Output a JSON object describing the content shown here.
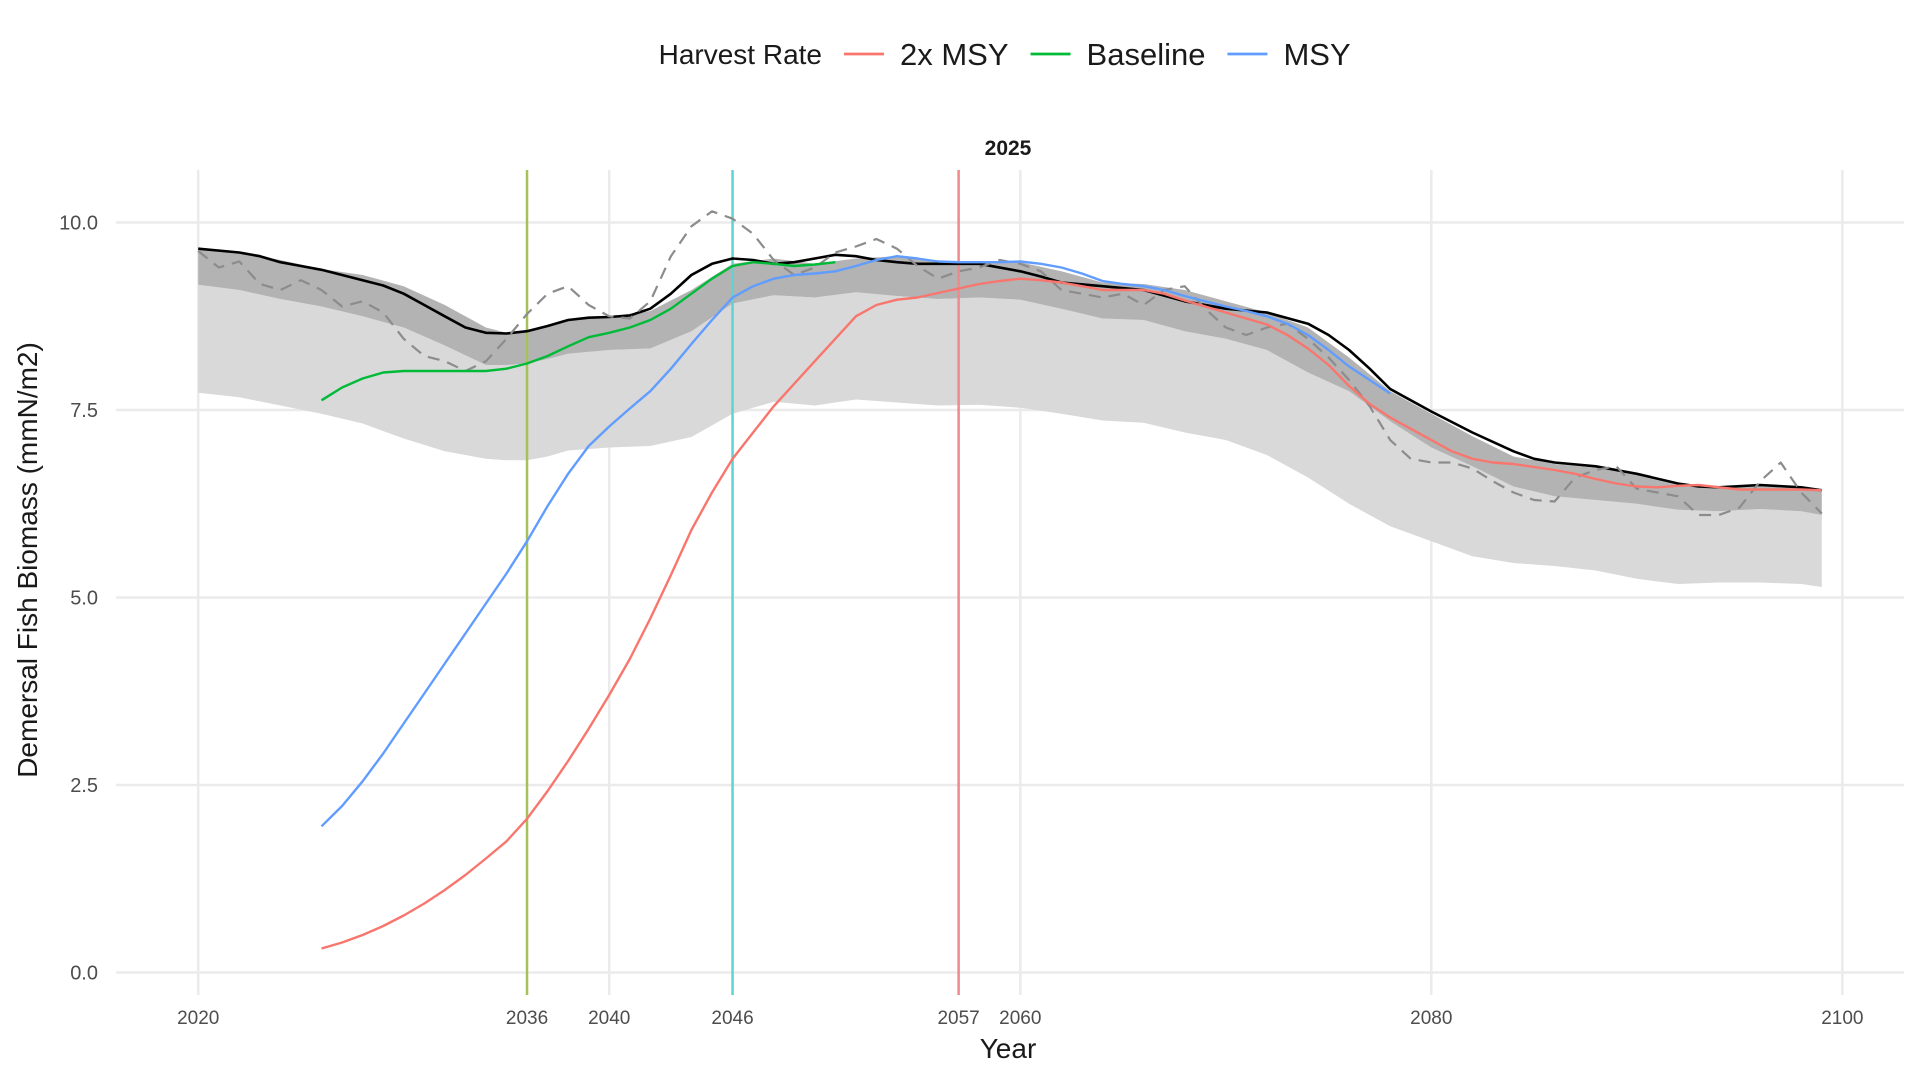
{
  "chart_data": {
    "type": "line",
    "facet_title": "2025",
    "xlabel": "Year",
    "ylabel": "Demersal Fish Biomass (mmN/m2)",
    "xlim": [
      2016,
      2103
    ],
    "ylim": [
      -0.3,
      10.7
    ],
    "x_ticks": [
      2020,
      2036,
      2040,
      2046,
      2057,
      2060,
      2080,
      2100
    ],
    "x_gridlines": [
      2020,
      2040,
      2060,
      2080,
      2100
    ],
    "y_ticks": [
      0,
      2.5,
      5,
      7.5,
      10
    ],
    "y_tick_labels": [
      "0.0",
      "2.5",
      "5.0",
      "7.5",
      "10.0"
    ],
    "grid": true,
    "legend": {
      "title": "Harvest Rate",
      "position": "top",
      "entries": [
        {
          "label": "2x MSY",
          "color": "#F8766D"
        },
        {
          "label": "Baseline",
          "color": "#00BA38"
        },
        {
          "label": "MSY",
          "color": "#619CFF"
        }
      ]
    },
    "vlines": [
      {
        "x": 2036,
        "color": "#A3C35A"
      },
      {
        "x": 2046,
        "color": "#5FD3D3"
      },
      {
        "x": 2057,
        "color": "#F08A8A"
      }
    ],
    "band_outer": {
      "color": "#d9d9d9",
      "x": [
        2020,
        2022,
        2024,
        2026,
        2028,
        2030,
        2032,
        2034,
        2035,
        2036,
        2037,
        2038,
        2040,
        2042,
        2044,
        2046,
        2048,
        2050,
        2052,
        2054,
        2056,
        2058,
        2060,
        2062,
        2064,
        2066,
        2068,
        2070,
        2072,
        2074,
        2076,
        2078,
        2080,
        2082,
        2084,
        2086,
        2088,
        2090,
        2092,
        2094,
        2096,
        2098,
        2099
      ],
      "upper": [
        9.17,
        9.1,
        8.98,
        8.88,
        8.75,
        8.6,
        8.36,
        8.1,
        8.1,
        8.12,
        8.18,
        8.25,
        8.3,
        8.32,
        8.55,
        8.92,
        9.03,
        9.0,
        9.07,
        9.02,
        8.98,
        9.0,
        8.97,
        8.85,
        8.72,
        8.7,
        8.55,
        8.45,
        8.3,
        8.0,
        7.75,
        7.35,
        7.0,
        6.75,
        6.48,
        6.35,
        6.3,
        6.25,
        6.17,
        6.15,
        6.18,
        6.15,
        6.1
      ],
      "lower": [
        7.73,
        7.67,
        7.56,
        7.45,
        7.32,
        7.12,
        6.95,
        6.85,
        6.83,
        6.83,
        6.88,
        6.96,
        7.0,
        7.02,
        7.14,
        7.45,
        7.61,
        7.56,
        7.64,
        7.6,
        7.56,
        7.57,
        7.53,
        7.45,
        7.36,
        7.33,
        7.2,
        7.1,
        6.9,
        6.6,
        6.25,
        5.95,
        5.75,
        5.55,
        5.46,
        5.42,
        5.36,
        5.25,
        5.18,
        5.2,
        5.2,
        5.18,
        5.14
      ]
    },
    "band_inner": {
      "color": "#b3b3b3",
      "x": [
        2020,
        2022,
        2024,
        2026,
        2028,
        2030,
        2032,
        2034,
        2035,
        2036,
        2037,
        2038,
        2040,
        2042,
        2044,
        2046,
        2048,
        2050,
        2052,
        2054,
        2056,
        2058,
        2060,
        2062,
        2064,
        2066,
        2068,
        2070,
        2072,
        2074,
        2076,
        2078,
        2080,
        2082,
        2084,
        2086,
        2088,
        2090,
        2092,
        2094,
        2096,
        2098,
        2099
      ],
      "upper": [
        9.65,
        9.6,
        9.5,
        9.38,
        9.3,
        9.15,
        8.9,
        8.6,
        8.53,
        8.55,
        8.62,
        8.7,
        8.75,
        8.82,
        9.1,
        9.45,
        9.52,
        9.45,
        9.52,
        9.55,
        9.48,
        9.45,
        9.47,
        9.35,
        9.2,
        9.18,
        9.1,
        8.95,
        8.8,
        8.6,
        8.2,
        7.75,
        7.45,
        7.15,
        6.88,
        6.78,
        6.73,
        6.63,
        6.5,
        6.47,
        6.5,
        6.45,
        6.43
      ],
      "lower": [
        9.17,
        9.1,
        8.98,
        8.88,
        8.75,
        8.6,
        8.36,
        8.1,
        8.1,
        8.12,
        8.18,
        8.25,
        8.3,
        8.32,
        8.55,
        8.92,
        9.03,
        9.0,
        9.07,
        9.02,
        8.98,
        9.0,
        8.97,
        8.85,
        8.72,
        8.7,
        8.55,
        8.45,
        8.3,
        8.0,
        7.75,
        7.35,
        7.0,
        6.75,
        6.48,
        6.35,
        6.3,
        6.25,
        6.17,
        6.15,
        6.18,
        6.15,
        6.1
      ]
    },
    "reference_lines": [
      {
        "style": "solid",
        "color": "#000000",
        "x": [
          2020,
          2022,
          2023,
          2024,
          2025,
          2026,
          2027,
          2028,
          2029,
          2030,
          2031,
          2032,
          2033,
          2034,
          2035,
          2036,
          2037,
          2038,
          2039,
          2040,
          2041,
          2042,
          2043,
          2044,
          2045,
          2046,
          2047,
          2048,
          2049,
          2050,
          2051,
          2052,
          2053,
          2054,
          2055,
          2056,
          2058,
          2060,
          2061,
          2062,
          2064,
          2066,
          2068,
          2070,
          2072,
          2074,
          2075,
          2076,
          2077,
          2078,
          2080,
          2082,
          2084,
          2085,
          2086,
          2088,
          2090,
          2092,
          2093,
          2094,
          2096,
          2098,
          2099
        ],
        "y": [
          9.65,
          9.6,
          9.55,
          9.47,
          9.42,
          9.37,
          9.3,
          9.23,
          9.16,
          9.05,
          8.9,
          8.75,
          8.6,
          8.53,
          8.52,
          8.55,
          8.62,
          8.7,
          8.73,
          8.74,
          8.76,
          8.85,
          9.05,
          9.3,
          9.45,
          9.52,
          9.5,
          9.45,
          9.47,
          9.52,
          9.57,
          9.55,
          9.5,
          9.47,
          9.45,
          9.45,
          9.45,
          9.35,
          9.28,
          9.2,
          9.15,
          9.1,
          8.95,
          8.85,
          8.8,
          8.65,
          8.5,
          8.3,
          8.05,
          7.78,
          7.48,
          7.2,
          6.95,
          6.85,
          6.8,
          6.75,
          6.65,
          6.52,
          6.48,
          6.47,
          6.5,
          6.47,
          6.43
        ]
      },
      {
        "style": "dashed",
        "color": "#8c8c8c",
        "x": [
          2020,
          2021,
          2022,
          2023,
          2024,
          2025,
          2026,
          2027,
          2028,
          2029,
          2030,
          2031,
          2032,
          2033,
          2034,
          2035,
          2036,
          2037,
          2038,
          2039,
          2040,
          2041,
          2042,
          2043,
          2044,
          2045,
          2046,
          2047,
          2048,
          2049,
          2050,
          2051,
          2052,
          2053,
          2054,
          2055,
          2056,
          2057,
          2058,
          2059,
          2060,
          2061,
          2062,
          2063,
          2064,
          2065,
          2066,
          2067,
          2068,
          2069,
          2070,
          2071,
          2072,
          2073,
          2074,
          2075,
          2076,
          2077,
          2078,
          2079,
          2080,
          2081,
          2082,
          2083,
          2084,
          2085,
          2086,
          2087,
          2088,
          2089,
          2090,
          2091,
          2092,
          2093,
          2094,
          2095,
          2096,
          2097,
          2098,
          2099
        ],
        "y": [
          9.62,
          9.4,
          9.48,
          9.18,
          9.1,
          9.23,
          9.1,
          8.88,
          8.95,
          8.8,
          8.45,
          8.22,
          8.15,
          8.02,
          8.15,
          8.45,
          8.78,
          9.05,
          9.15,
          8.9,
          8.75,
          8.72,
          8.95,
          9.55,
          9.95,
          10.15,
          10.05,
          9.85,
          9.5,
          9.3,
          9.4,
          9.6,
          9.68,
          9.78,
          9.65,
          9.42,
          9.25,
          9.35,
          9.4,
          9.5,
          9.45,
          9.35,
          9.1,
          9.05,
          9.0,
          9.05,
          8.9,
          9.1,
          9.15,
          8.85,
          8.6,
          8.5,
          8.6,
          8.65,
          8.45,
          8.2,
          7.9,
          7.55,
          7.1,
          6.85,
          6.8,
          6.8,
          6.72,
          6.55,
          6.4,
          6.3,
          6.28,
          6.6,
          6.7,
          6.75,
          6.45,
          6.4,
          6.35,
          6.1,
          6.1,
          6.2,
          6.55,
          6.8,
          6.4,
          6.12
        ]
      }
    ],
    "series": [
      {
        "name": "2x MSY",
        "color": "#F8766D",
        "x": [
          2026,
          2027,
          2028,
          2029,
          2030,
          2031,
          2032,
          2033,
          2034,
          2035,
          2036,
          2037,
          2038,
          2039,
          2040,
          2041,
          2042,
          2043,
          2044,
          2045,
          2046,
          2047,
          2048,
          2049,
          2050,
          2051,
          2052,
          2053,
          2054,
          2055,
          2056,
          2057,
          2058,
          2059,
          2060,
          2061,
          2062,
          2063,
          2064,
          2065,
          2066,
          2067,
          2068,
          2069,
          2070,
          2071,
          2072,
          2073,
          2074,
          2075,
          2076,
          2077,
          2078,
          2079,
          2080,
          2081,
          2082,
          2083,
          2084,
          2085,
          2086,
          2087,
          2088,
          2089,
          2090,
          2091,
          2092,
          2093,
          2094,
          2095,
          2096,
          2097,
          2098,
          2099
        ],
        "y": [
          0.32,
          0.4,
          0.5,
          0.62,
          0.76,
          0.92,
          1.1,
          1.3,
          1.52,
          1.75,
          2.05,
          2.42,
          2.82,
          3.25,
          3.7,
          4.18,
          4.72,
          5.3,
          5.9,
          6.4,
          6.85,
          7.2,
          7.55,
          7.85,
          8.15,
          8.45,
          8.75,
          8.9,
          8.97,
          9.0,
          9.06,
          9.12,
          9.18,
          9.22,
          9.25,
          9.23,
          9.2,
          9.15,
          9.1,
          9.1,
          9.1,
          9.05,
          8.96,
          8.88,
          8.8,
          8.72,
          8.64,
          8.5,
          8.32,
          8.1,
          7.82,
          7.58,
          7.4,
          7.25,
          7.1,
          6.95,
          6.85,
          6.8,
          6.78,
          6.74,
          6.7,
          6.65,
          6.58,
          6.52,
          6.48,
          6.47,
          6.49,
          6.5,
          6.47,
          6.44,
          6.44,
          6.44,
          6.44,
          6.43
        ]
      },
      {
        "name": "Baseline",
        "color": "#00BA38",
        "x": [
          2026,
          2027,
          2028,
          2029,
          2030,
          2031,
          2032,
          2033,
          2034,
          2035,
          2036,
          2037,
          2038,
          2039,
          2040,
          2041,
          2042,
          2043,
          2044,
          2045,
          2046,
          2047,
          2048,
          2049,
          2050,
          2051
        ],
        "y": [
          7.63,
          7.8,
          7.92,
          8.0,
          8.02,
          8.02,
          8.02,
          8.02,
          8.02,
          8.05,
          8.12,
          8.22,
          8.35,
          8.47,
          8.53,
          8.6,
          8.7,
          8.85,
          9.05,
          9.25,
          9.42,
          9.47,
          9.45,
          9.42,
          9.44,
          9.47
        ]
      },
      {
        "name": "MSY",
        "color": "#619CFF",
        "x": [
          2026,
          2027,
          2028,
          2029,
          2030,
          2031,
          2032,
          2033,
          2034,
          2035,
          2036,
          2037,
          2038,
          2039,
          2040,
          2041,
          2042,
          2043,
          2044,
          2045,
          2046,
          2047,
          2048,
          2049,
          2050,
          2051,
          2052,
          2053,
          2054,
          2055,
          2056,
          2057,
          2058,
          2059,
          2060,
          2061,
          2062,
          2063,
          2064,
          2065,
          2066,
          2067,
          2068,
          2069,
          2070,
          2071,
          2072,
          2073,
          2074,
          2075,
          2076,
          2077,
          2078
        ],
        "y": [
          1.95,
          2.22,
          2.55,
          2.92,
          3.32,
          3.72,
          4.12,
          4.52,
          4.92,
          5.32,
          5.75,
          6.22,
          6.65,
          7.02,
          7.28,
          7.52,
          7.75,
          8.05,
          8.38,
          8.7,
          9.0,
          9.15,
          9.25,
          9.3,
          9.32,
          9.35,
          9.42,
          9.5,
          9.55,
          9.52,
          9.48,
          9.47,
          9.47,
          9.47,
          9.48,
          9.45,
          9.4,
          9.32,
          9.22,
          9.18,
          9.15,
          9.1,
          9.02,
          8.95,
          8.88,
          8.82,
          8.75,
          8.65,
          8.5,
          8.3,
          8.08,
          7.9,
          7.72
        ]
      }
    ]
  }
}
